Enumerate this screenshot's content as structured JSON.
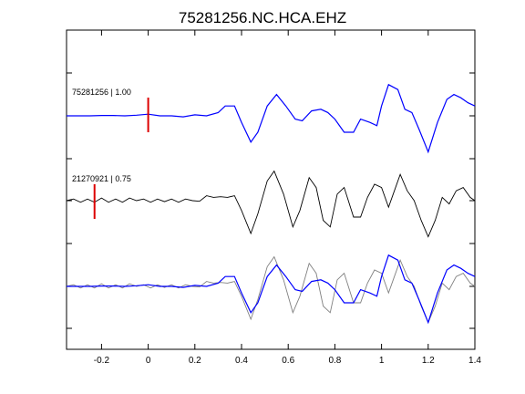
{
  "chart_data": {
    "type": "line",
    "title": "75281256.NC.HCA.EHZ",
    "xlabel": "",
    "ylabel": "",
    "xlim": [
      -0.35,
      1.4
    ],
    "x_ticks": [
      -0.2,
      0,
      0.2,
      0.4,
      0.6,
      0.8,
      1,
      1.2,
      1.4
    ],
    "x_tick_labels": [
      "-0.2",
      "0",
      "0.2",
      "0.4",
      "0.6",
      "0.8",
      "1",
      "1.2",
      "1.4"
    ],
    "grid": false,
    "traces": [
      {
        "label": "75281256 | 1.00",
        "pick_time": 0.0,
        "color": "#0000ff",
        "points": [
          [
            -0.35,
            0
          ],
          [
            -0.3,
            0
          ],
          [
            -0.25,
            0
          ],
          [
            -0.2,
            0.01
          ],
          [
            -0.15,
            0.01
          ],
          [
            -0.1,
            0
          ],
          [
            -0.05,
            0.02
          ],
          [
            0,
            0.05
          ],
          [
            0.05,
            0
          ],
          [
            0.1,
            0
          ],
          [
            0.15,
            -0.03
          ],
          [
            0.2,
            0.03
          ],
          [
            0.25,
            0
          ],
          [
            0.3,
            0.1
          ],
          [
            0.33,
            0.3
          ],
          [
            0.37,
            0.3
          ],
          [
            0.4,
            -0.2
          ],
          [
            0.44,
            -0.8
          ],
          [
            0.47,
            -0.5
          ],
          [
            0.51,
            0.3
          ],
          [
            0.55,
            0.65
          ],
          [
            0.59,
            0.3
          ],
          [
            0.63,
            -0.1
          ],
          [
            0.66,
            -0.15
          ],
          [
            0.7,
            0.15
          ],
          [
            0.74,
            0.2
          ],
          [
            0.77,
            0.1
          ],
          [
            0.8,
            -0.1
          ],
          [
            0.84,
            -0.5
          ],
          [
            0.88,
            -0.5
          ],
          [
            0.91,
            -0.1
          ],
          [
            0.95,
            -0.2
          ],
          [
            0.98,
            -0.3
          ],
          [
            1,
            0.3
          ],
          [
            1.03,
            0.95
          ],
          [
            1.07,
            0.8
          ],
          [
            1.1,
            0.2
          ],
          [
            1.13,
            0.1
          ],
          [
            1.16,
            -0.4
          ],
          [
            1.2,
            -1.1
          ],
          [
            1.24,
            -0.2
          ],
          [
            1.28,
            0.5
          ],
          [
            1.31,
            0.65
          ],
          [
            1.34,
            0.55
          ],
          [
            1.37,
            0.4
          ],
          [
            1.4,
            0.3
          ]
        ]
      },
      {
        "label": "21270921 | 0.75",
        "pick_time": -0.23,
        "color": "#000000",
        "points": [
          [
            -0.35,
            0
          ],
          [
            -0.32,
            0.05
          ],
          [
            -0.29,
            -0.05
          ],
          [
            -0.26,
            0.05
          ],
          [
            -0.23,
            -0.05
          ],
          [
            -0.2,
            0.08
          ],
          [
            -0.17,
            -0.05
          ],
          [
            -0.14,
            0.05
          ],
          [
            -0.11,
            -0.05
          ],
          [
            -0.08,
            0.08
          ],
          [
            -0.05,
            0
          ],
          [
            -0.02,
            0.05
          ],
          [
            0.01,
            -0.05
          ],
          [
            0.04,
            0.05
          ],
          [
            0.07,
            -0.03
          ],
          [
            0.1,
            0.05
          ],
          [
            0.13,
            -0.05
          ],
          [
            0.16,
            0.05
          ],
          [
            0.19,
            0
          ],
          [
            0.22,
            -0.02
          ],
          [
            0.25,
            0.15
          ],
          [
            0.28,
            0.1
          ],
          [
            0.31,
            0.12
          ],
          [
            0.34,
            0.1
          ],
          [
            0.37,
            0.15
          ],
          [
            0.4,
            -0.3
          ],
          [
            0.44,
            -1.0
          ],
          [
            0.47,
            -0.4
          ],
          [
            0.51,
            0.6
          ],
          [
            0.54,
            0.9
          ],
          [
            0.58,
            0.2
          ],
          [
            0.62,
            -0.8
          ],
          [
            0.65,
            -0.3
          ],
          [
            0.69,
            0.7
          ],
          [
            0.72,
            0.4
          ],
          [
            0.75,
            -0.6
          ],
          [
            0.78,
            -0.8
          ],
          [
            0.81,
            0.2
          ],
          [
            0.84,
            0.4
          ],
          [
            0.88,
            -0.5
          ],
          [
            0.91,
            -0.5
          ],
          [
            0.94,
            0.1
          ],
          [
            0.97,
            0.5
          ],
          [
            1.0,
            0.4
          ],
          [
            1.03,
            -0.2
          ],
          [
            1.05,
            0.2
          ],
          [
            1.08,
            0.8
          ],
          [
            1.11,
            0.3
          ],
          [
            1.14,
            0
          ],
          [
            1.17,
            -0.6
          ],
          [
            1.2,
            -1.1
          ],
          [
            1.23,
            -0.6
          ],
          [
            1.26,
            0.1
          ],
          [
            1.29,
            -0.1
          ],
          [
            1.32,
            0.3
          ],
          [
            1.35,
            0.4
          ],
          [
            1.38,
            0.1
          ],
          [
            1.4,
            0
          ]
        ]
      }
    ]
  }
}
